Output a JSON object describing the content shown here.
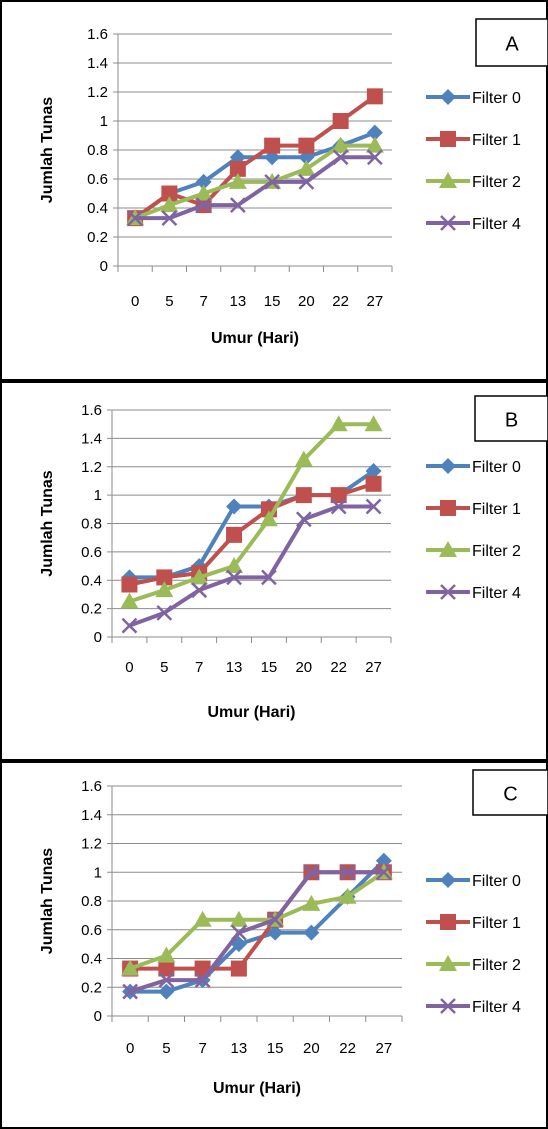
{
  "chart_data": [
    {
      "type": "line",
      "panel_label": "A",
      "categories": [
        "0",
        "5",
        "7",
        "13",
        "15",
        "20",
        "22",
        "27"
      ],
      "xlabel": "Umur (Hari)",
      "ylabel": "Jumlah Tunas",
      "ylim": [
        0,
        1.6
      ],
      "yticks": [
        "0",
        "0.2",
        "0.4",
        "0.6",
        "0.8",
        "1",
        "1.2",
        "1.4",
        "1.6"
      ],
      "grid": true,
      "legend_position": "right",
      "series": [
        {
          "name": "Filter 0",
          "color": "#4F81BD",
          "marker": "diamond",
          "values": [
            0.33,
            0.5,
            0.58,
            0.75,
            0.75,
            0.75,
            0.83,
            0.92
          ]
        },
        {
          "name": "Filter 1",
          "color": "#C0504D",
          "marker": "square",
          "values": [
            0.33,
            0.5,
            0.42,
            0.67,
            0.83,
            0.83,
            1.0,
            1.17
          ]
        },
        {
          "name": "Filter 2",
          "color": "#9BBB59",
          "marker": "triangle",
          "values": [
            0.33,
            0.42,
            0.5,
            0.58,
            0.58,
            0.67,
            0.83,
            0.83
          ]
        },
        {
          "name": "Filter 4",
          "color": "#8064A2",
          "marker": "x",
          "values": [
            0.33,
            0.33,
            0.42,
            0.42,
            0.58,
            0.58,
            0.75,
            0.75
          ]
        }
      ]
    },
    {
      "type": "line",
      "panel_label": "B",
      "categories": [
        "0",
        "5",
        "7",
        "13",
        "15",
        "20",
        "22",
        "27"
      ],
      "xlabel": "Umur (Hari)",
      "ylabel": "Jumlah Tunas",
      "ylim": [
        0,
        1.6
      ],
      "yticks": [
        "0",
        "0.2",
        "0.4",
        "0.6",
        "0.8",
        "1",
        "1.2",
        "1.4",
        "1.6"
      ],
      "grid": true,
      "legend_position": "right",
      "series": [
        {
          "name": "Filter 0",
          "color": "#4F81BD",
          "marker": "diamond",
          "values": [
            0.42,
            0.42,
            0.5,
            0.92,
            0.92,
            1.0,
            1.0,
            1.17
          ]
        },
        {
          "name": "Filter 1",
          "color": "#C0504D",
          "marker": "square",
          "values": [
            0.37,
            0.42,
            0.45,
            0.72,
            0.9,
            1.0,
            1.0,
            1.08
          ]
        },
        {
          "name": "Filter 2",
          "color": "#9BBB59",
          "marker": "triangle",
          "values": [
            0.25,
            0.33,
            0.42,
            0.5,
            0.83,
            1.25,
            1.5,
            1.5
          ]
        },
        {
          "name": "Filter 4",
          "color": "#8064A2",
          "marker": "x",
          "values": [
            0.08,
            0.17,
            0.33,
            0.42,
            0.42,
            0.83,
            0.92,
            0.92
          ]
        }
      ]
    },
    {
      "type": "line",
      "panel_label": "C",
      "categories": [
        "0",
        "5",
        "7",
        "13",
        "15",
        "20",
        "22",
        "27"
      ],
      "xlabel": "Umur (Hari)",
      "ylabel": "Jumlah Tunas",
      "ylim": [
        0,
        1.6
      ],
      "yticks": [
        "0",
        "0.2",
        "0.4",
        "0.6",
        "0.8",
        "1",
        "1.2",
        "1.4",
        "1.6"
      ],
      "grid": true,
      "legend_position": "right",
      "series": [
        {
          "name": "Filter 0",
          "color": "#4F81BD",
          "marker": "diamond",
          "values": [
            0.17,
            0.17,
            0.25,
            0.5,
            0.58,
            0.58,
            0.83,
            1.08
          ]
        },
        {
          "name": "Filter 1",
          "color": "#C0504D",
          "marker": "square",
          "values": [
            0.33,
            0.33,
            0.33,
            0.33,
            0.67,
            1.0,
            1.0,
            1.0
          ]
        },
        {
          "name": "Filter 2",
          "color": "#9BBB59",
          "marker": "triangle",
          "values": [
            0.33,
            0.42,
            0.67,
            0.67,
            0.67,
            0.78,
            0.83,
            1.0
          ]
        },
        {
          "name": "Filter 4",
          "color": "#8064A2",
          "marker": "x",
          "values": [
            0.17,
            0.25,
            0.25,
            0.58,
            0.67,
            1.0,
            1.0,
            1.0
          ]
        }
      ]
    }
  ]
}
